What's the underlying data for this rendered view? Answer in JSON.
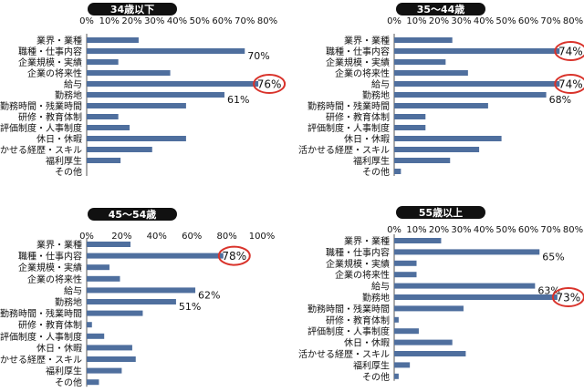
{
  "chart_data": [
    {
      "type": "bar",
      "title": "34歳以下",
      "categories": [
        "業界・業種",
        "職種・仕事内容",
        "企業規模・実績",
        "企業の将来性",
        "給与",
        "勤務地",
        "勤務時間・残業時間",
        "研修・教育体制",
        "評価制度・人事制度",
        "休日・休暇",
        "活かせる経歴・スキル",
        "福利厚生",
        "その他"
      ],
      "values": [
        23,
        70,
        14,
        37,
        76,
        61,
        44,
        14,
        19,
        44,
        29,
        15,
        0
      ],
      "ticks": [
        "0%",
        "10%",
        "20%",
        "30%",
        "40%",
        "50%",
        "60%",
        "70%",
        "80%"
      ],
      "xlim": [
        0,
        80
      ],
      "annotations": [
        {
          "index": 1,
          "label": "70%",
          "circled": false
        },
        {
          "index": 4,
          "label": "76%",
          "circled": true
        },
        {
          "index": 5,
          "label": "61%",
          "circled": false
        }
      ]
    },
    {
      "type": "bar",
      "title": "35～44歳",
      "categories": [
        "業界・業種",
        "職種・仕事内容",
        "企業規模・実績",
        "企業の将来性",
        "給与",
        "勤務地",
        "勤務時間・残業時間",
        "研修・教育体制",
        "評価制度・人事制度",
        "休日・休暇",
        "活かせる経歴・スキル",
        "福利厚生",
        "その他"
      ],
      "values": [
        26,
        74,
        23,
        33,
        74,
        68,
        42,
        14,
        14,
        48,
        38,
        25,
        3
      ],
      "ticks": [
        "0%",
        "10%",
        "20%",
        "30%",
        "40%",
        "50%",
        "60%",
        "70%",
        "80%"
      ],
      "xlim": [
        0,
        80
      ],
      "annotations": [
        {
          "index": 1,
          "label": "74%",
          "circled": true
        },
        {
          "index": 4,
          "label": "74%",
          "circled": true
        },
        {
          "index": 5,
          "label": "68%",
          "circled": false
        }
      ]
    },
    {
      "type": "bar",
      "title": "45～54歳",
      "categories": [
        "業界・業種",
        "職種・仕事内容",
        "企業規模・実績",
        "企業の将来性",
        "給与",
        "勤務地",
        "勤務時間・残業時間",
        "研修・教育体制",
        "評価制度・人事制度",
        "休日・休暇",
        "活かせる経歴・スキル",
        "福利厚生",
        "その他"
      ],
      "values": [
        25,
        78,
        13,
        19,
        62,
        51,
        32,
        3,
        10,
        26,
        28,
        20,
        7
      ],
      "ticks": [
        "0%",
        "20%",
        "40%",
        "60%",
        "80%",
        "100%"
      ],
      "xlim": [
        0,
        100
      ],
      "annotations": [
        {
          "index": 1,
          "label": "78%",
          "circled": true
        },
        {
          "index": 4,
          "label": "62%",
          "circled": false
        },
        {
          "index": 5,
          "label": "51%",
          "circled": false
        }
      ]
    },
    {
      "type": "bar",
      "title": "55歳以上",
      "categories": [
        "業界・業種",
        "職種・仕事内容",
        "企業規模・実績",
        "企業の将来性",
        "給与",
        "勤務地",
        "勤務時間・残業時間",
        "研修・教育体制",
        "評価制度・人事制度",
        "休日・休暇",
        "活かせる経歴・スキル",
        "福利厚生",
        "その他"
      ],
      "values": [
        21,
        65,
        10,
        10,
        63,
        73,
        31,
        2,
        11,
        26,
        32,
        7,
        2
      ],
      "ticks": [
        "0%",
        "10%",
        "20%",
        "30%",
        "40%",
        "50%",
        "60%",
        "70%",
        "80%"
      ],
      "xlim": [
        0,
        80
      ],
      "annotations": [
        {
          "index": 1,
          "label": "65%",
          "circled": false
        },
        {
          "index": 4,
          "label": "63%",
          "circled": false
        },
        {
          "index": 5,
          "label": "73%",
          "circled": true
        }
      ]
    }
  ],
  "colors": {
    "bar": "#4f6f9e",
    "circle": "#d9332b",
    "title_bg": "#111111",
    "axis": "#555555"
  }
}
